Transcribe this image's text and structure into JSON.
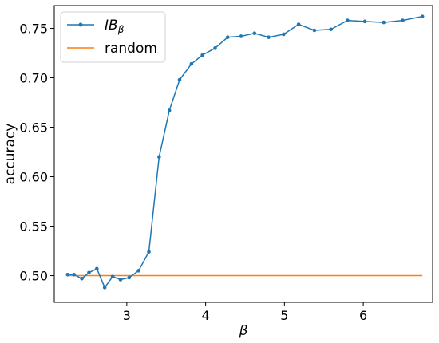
{
  "chart_data": {
    "type": "line",
    "xlabel": "β",
    "ylabel": "accuracy",
    "xlim": [
      2.08,
      6.88
    ],
    "ylim": [
      0.473,
      0.773
    ],
    "xticks": [
      3,
      4,
      5,
      6
    ],
    "yticks": [
      0.5,
      0.55,
      0.6,
      0.65,
      0.7,
      0.75
    ],
    "xtick_labels": [
      "3",
      "4",
      "5",
      "6"
    ],
    "ytick_labels": [
      "0.50",
      "0.55",
      "0.60",
      "0.65",
      "0.70",
      "0.75"
    ],
    "grid": false,
    "legend_position": "upper-left",
    "series": [
      {
        "name": "IB",
        "name_subscript": "β",
        "color": "#1f77b4",
        "marker": "dot",
        "x": [
          2.25,
          2.33,
          2.43,
          2.52,
          2.62,
          2.72,
          2.82,
          2.92,
          3.03,
          3.15,
          3.28,
          3.41,
          3.54,
          3.67,
          3.82,
          3.96,
          4.12,
          4.28,
          4.45,
          4.62,
          4.8,
          4.99,
          5.18,
          5.38,
          5.59,
          5.8,
          6.02,
          6.26,
          6.5,
          6.75
        ],
        "y": [
          0.501,
          0.501,
          0.497,
          0.503,
          0.507,
          0.488,
          0.499,
          0.496,
          0.498,
          0.505,
          0.524,
          0.62,
          0.667,
          0.698,
          0.714,
          0.723,
          0.73,
          0.741,
          0.742,
          0.745,
          0.741,
          0.744,
          0.754,
          0.748,
          0.749,
          0.758,
          0.757,
          0.756,
          0.758,
          0.762
        ]
      },
      {
        "name": "random",
        "color": "#ff7f0e",
        "marker": "none",
        "x": [
          2.25,
          6.75
        ],
        "y": [
          0.5,
          0.5
        ]
      }
    ]
  }
}
